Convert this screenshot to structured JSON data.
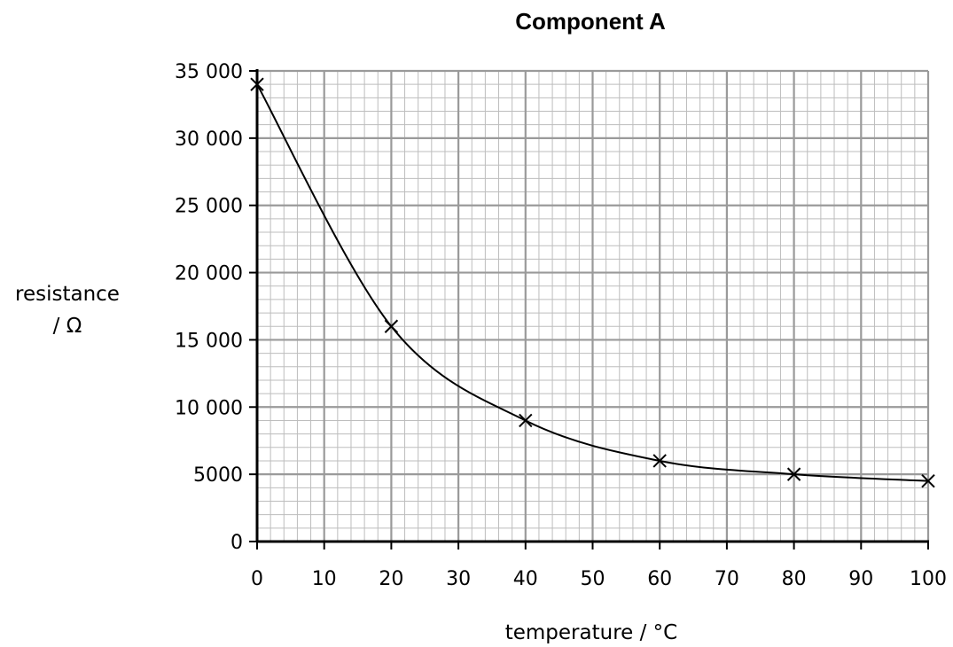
{
  "chart_data": {
    "type": "line",
    "title": "Component A",
    "xlabel": "temperature / °C",
    "ylabel_line1": "resistance",
    "ylabel_line2": "/ Ω",
    "xlim": [
      0,
      100
    ],
    "ylim": [
      0,
      35000
    ],
    "x_ticks": [
      0,
      10,
      20,
      30,
      40,
      50,
      60,
      70,
      80,
      90,
      100
    ],
    "x_tick_labels": [
      "0",
      "10",
      "20",
      "30",
      "40",
      "50",
      "60",
      "70",
      "80",
      "90",
      "100"
    ],
    "y_ticks": [
      0,
      5000,
      10000,
      15000,
      20000,
      25000,
      30000,
      35000
    ],
    "y_tick_labels": [
      "0",
      "5000",
      "10 000",
      "15 000",
      "20 000",
      "25 000",
      "30 000",
      "35 000"
    ],
    "grid": true,
    "grid_minor_per_major": 5,
    "marker": "cross",
    "series": [
      {
        "x": [
          0,
          20,
          40,
          60,
          80,
          100
        ],
        "y": [
          34000,
          16000,
          9000,
          6000,
          5000,
          4500
        ]
      }
    ]
  }
}
